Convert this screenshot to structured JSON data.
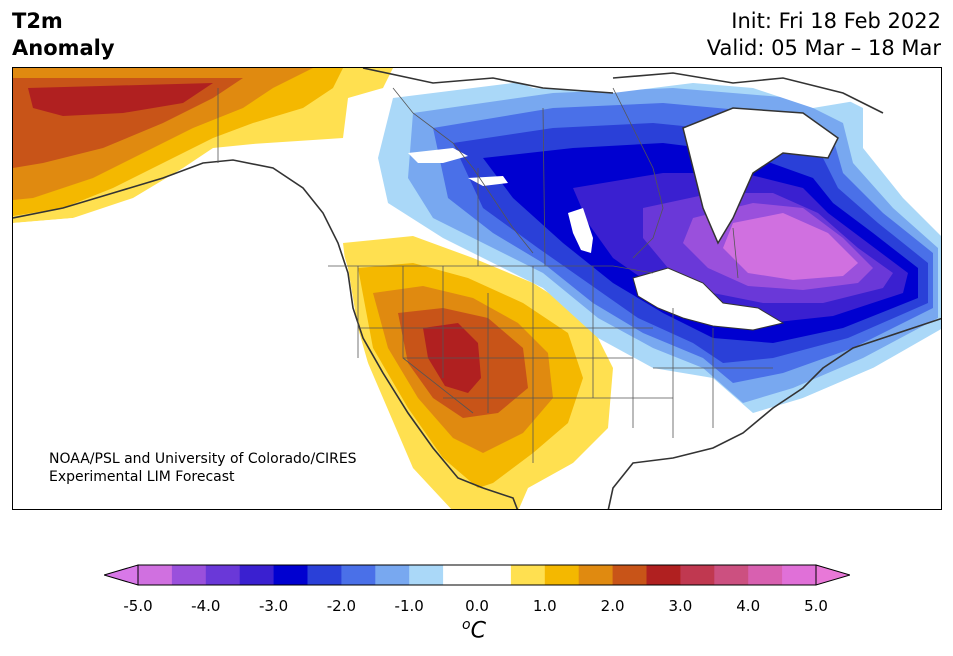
{
  "header": {
    "variable_line1": "T2m",
    "variable_line2": "Anomaly",
    "init": "Init: Fri 18 Feb 2022",
    "valid": "Valid: 05 Mar – 18 Mar"
  },
  "credit": {
    "line1": "NOAA/PSL and University of Colorado/CIRES",
    "line2": "Experimental LIM Forecast"
  },
  "colorbar": {
    "unit_sup": "o",
    "unit_main": "C",
    "ticks": [
      "-5.0",
      "-4.0",
      "-3.0",
      "-2.0",
      "-1.0",
      "0.0",
      "1.0",
      "2.0",
      "3.0",
      "4.0",
      "5.0"
    ],
    "colors": [
      "#d070e0",
      "#9a50dc",
      "#6a38d8",
      "#3a20d0",
      "#0000d0",
      "#2a40d8",
      "#4a70e8",
      "#78a8f0",
      "#aad8f8",
      "#ffffff",
      "#ffffff",
      "#ffe050",
      "#f4b800",
      "#e08a10",
      "#c85418",
      "#b02020",
      "#c03850",
      "#cc5080",
      "#d860b0",
      "#e070d8"
    ],
    "under_color": "#d878e8",
    "over_color": "#e878d8"
  }
}
